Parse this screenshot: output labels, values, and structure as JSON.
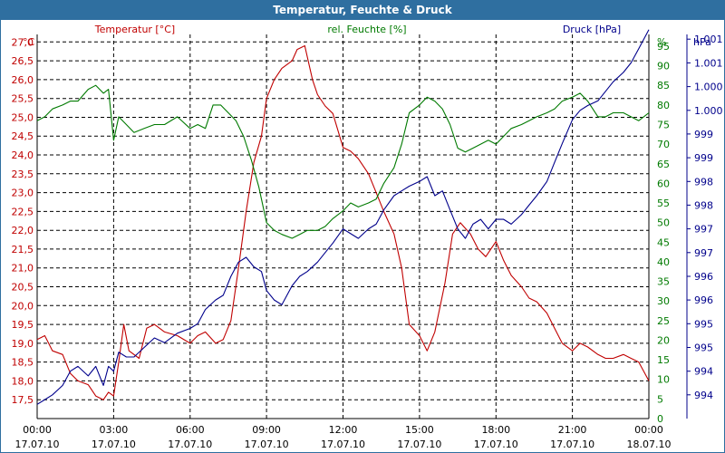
{
  "window": {
    "title": "Temperatur, Feuchte & Druck"
  },
  "colors": {
    "temperature": "#c00000",
    "humidity": "#007a00",
    "pressure": "#00008b",
    "grid": "#000000",
    "title_bar": "#2f6fa0"
  },
  "chart_data": {
    "type": "line",
    "title": "Temperatur, Feuchte & Druck",
    "legend_labels": {
      "temperature": "Temperatur [°C]",
      "humidity": "rel. Feuchte [%]",
      "pressure": "Druck [hPa]"
    },
    "axes": {
      "left": {
        "unit": "°C",
        "range": [
          17.0,
          27.2
        ],
        "ticks": [
          "17,5",
          "18,0",
          "18,5",
          "19,0",
          "19,5",
          "20,0",
          "20,5",
          "21,0",
          "21,5",
          "22,0",
          "22,5",
          "23,0",
          "23,5",
          "24,0",
          "24,5",
          "25,0",
          "25,5",
          "26,0",
          "26,5",
          "27,0"
        ],
        "tick_values": [
          17.5,
          18.0,
          18.5,
          19.0,
          19.5,
          20.0,
          20.5,
          21.0,
          21.5,
          22.0,
          22.5,
          23.0,
          23.5,
          24.0,
          24.5,
          25.0,
          25.5,
          26.0,
          26.5,
          27.0
        ]
      },
      "right1": {
        "unit": "%",
        "range": [
          0,
          98
        ],
        "ticks": [
          "0",
          "5",
          "10",
          "15",
          "20",
          "25",
          "30",
          "35",
          "40",
          "45",
          "50",
          "55",
          "60",
          "65",
          "70",
          "75",
          "80",
          "85",
          "90",
          "95"
        ],
        "tick_values": [
          0,
          5,
          10,
          15,
          20,
          25,
          30,
          35,
          40,
          45,
          50,
          55,
          60,
          65,
          70,
          75,
          80,
          85,
          90,
          95
        ]
      },
      "right2": {
        "unit": "hPa",
        "range": [
          993.5,
          1001.6
        ],
        "ticks": [
          "994",
          "994",
          "995",
          "995",
          "996",
          "996",
          "997",
          "997",
          "998",
          "998",
          "999",
          "999",
          "1.000",
          "1.000",
          "1.001",
          "1.001"
        ],
        "tick_values": [
          994.0,
          994.5,
          995.0,
          995.5,
          996.0,
          996.5,
          997.0,
          997.5,
          998.0,
          998.5,
          999.0,
          999.5,
          1000.0,
          1000.5,
          1001.0,
          1001.5
        ]
      },
      "x": {
        "range": [
          0,
          24
        ],
        "tick_values": [
          0,
          3,
          6,
          9,
          12,
          15,
          18,
          21,
          24
        ],
        "time_labels": [
          "00:00",
          "03:00",
          "06:00",
          "09:00",
          "12:00",
          "15:00",
          "18:00",
          "21:00",
          "00:00"
        ],
        "date_labels": [
          "17.07.10",
          "17.07.10",
          "17.07.10",
          "17.07.10",
          "17.07.10",
          "17.07.10",
          "17.07.10",
          "17.07.10",
          "18.07.10"
        ]
      }
    },
    "series": [
      {
        "name": "Temperatur",
        "axis": "left",
        "x": [
          0,
          0.3,
          0.6,
          1.0,
          1.3,
          1.6,
          2.0,
          2.3,
          2.6,
          2.8,
          3.0,
          3.2,
          3.4,
          3.6,
          4.0,
          4.3,
          4.6,
          5.0,
          5.5,
          6.0,
          6.3,
          6.6,
          7.0,
          7.3,
          7.6,
          7.9,
          8.2,
          8.5,
          8.8,
          9.0,
          9.3,
          9.6,
          10.0,
          10.2,
          10.5,
          10.8,
          11.0,
          11.3,
          11.6,
          12.0,
          12.3,
          12.6,
          13.0,
          13.3,
          13.6,
          14.0,
          14.3,
          14.6,
          15.0,
          15.3,
          15.6,
          16.0,
          16.3,
          16.6,
          17.0,
          17.3,
          17.6,
          18.0,
          18.3,
          18.6,
          19.0,
          19.3,
          19.6,
          20.0,
          20.3,
          20.6,
          21.0,
          21.3,
          21.6,
          22.0,
          22.3,
          22.6,
          23.0,
          23.3,
          23.6,
          24.0
        ],
        "y": [
          19.1,
          19.2,
          18.8,
          18.7,
          18.2,
          18.0,
          17.9,
          17.6,
          17.5,
          17.7,
          17.6,
          18.5,
          19.5,
          18.8,
          18.6,
          19.4,
          19.5,
          19.3,
          19.2,
          19.0,
          19.2,
          19.3,
          19.0,
          19.1,
          19.6,
          21.0,
          22.5,
          23.8,
          24.5,
          25.5,
          26.0,
          26.3,
          26.5,
          26.8,
          26.9,
          26.0,
          25.6,
          25.3,
          25.1,
          24.2,
          24.1,
          23.9,
          23.5,
          23.0,
          22.5,
          21.9,
          21.0,
          19.5,
          19.2,
          18.8,
          19.3,
          20.6,
          21.9,
          22.2,
          21.9,
          21.5,
          21.3,
          21.7,
          21.2,
          20.8,
          20.5,
          20.2,
          20.1,
          19.8,
          19.4,
          19.0,
          18.8,
          19.0,
          18.9,
          18.7,
          18.6,
          18.6,
          18.7,
          18.6,
          18.5,
          18.0
        ]
      },
      {
        "name": "rel. Feuchte",
        "axis": "right1",
        "x": [
          0,
          0.3,
          0.6,
          1.0,
          1.3,
          1.6,
          2.0,
          2.3,
          2.6,
          2.8,
          3.0,
          3.2,
          3.5,
          3.8,
          4.2,
          4.6,
          5.0,
          5.5,
          6.0,
          6.3,
          6.6,
          6.9,
          7.2,
          7.5,
          7.8,
          8.1,
          8.4,
          8.7,
          9.0,
          9.3,
          9.6,
          10.0,
          10.3,
          10.6,
          11.0,
          11.3,
          11.6,
          12.0,
          12.3,
          12.6,
          13.0,
          13.3,
          13.6,
          14.0,
          14.3,
          14.6,
          15.0,
          15.3,
          15.6,
          15.9,
          16.2,
          16.5,
          16.8,
          17.1,
          17.4,
          17.7,
          18.0,
          18.3,
          18.6,
          19.0,
          19.3,
          19.6,
          20.0,
          20.3,
          20.6,
          21.0,
          21.3,
          21.6,
          22.0,
          22.3,
          22.6,
          23.0,
          23.3,
          23.6,
          24.0
        ],
        "y": [
          76,
          77,
          79,
          80,
          81,
          81,
          84,
          85,
          83,
          84,
          71,
          77,
          75,
          73,
          74,
          75,
          75,
          77,
          74,
          75,
          74,
          80,
          80,
          78,
          76,
          72,
          66,
          59,
          50,
          48,
          47,
          46,
          47,
          48,
          48,
          49,
          51,
          53,
          55,
          54,
          55,
          56,
          60,
          64,
          70,
          78,
          80,
          82,
          81,
          79,
          75,
          69,
          68,
          69,
          70,
          71,
          70,
          72,
          74,
          75,
          76,
          77,
          78,
          79,
          81,
          82,
          83,
          81,
          77,
          77,
          78,
          78,
          77,
          76,
          78
        ]
      },
      {
        "name": "Druck",
        "axis": "right2",
        "x": [
          0,
          0.3,
          0.6,
          1.0,
          1.3,
          1.6,
          2.0,
          2.3,
          2.6,
          2.8,
          3.0,
          3.2,
          3.5,
          3.8,
          4.2,
          4.6,
          5.0,
          5.5,
          6.0,
          6.3,
          6.6,
          7.0,
          7.3,
          7.6,
          7.9,
          8.2,
          8.5,
          8.8,
          9.0,
          9.3,
          9.6,
          10.0,
          10.3,
          10.6,
          11.0,
          11.3,
          11.6,
          12.0,
          12.3,
          12.6,
          13.0,
          13.3,
          13.6,
          14.0,
          14.3,
          14.6,
          15.0,
          15.3,
          15.6,
          15.9,
          16.2,
          16.5,
          16.8,
          17.1,
          17.4,
          17.7,
          18.0,
          18.3,
          18.6,
          19.0,
          19.3,
          19.6,
          20.0,
          20.3,
          20.6,
          21.0,
          21.3,
          21.6,
          22.0,
          22.3,
          22.6,
          23.0,
          23.3,
          23.6,
          24.0
        ],
        "y": [
          993.8,
          993.9,
          994.0,
          994.2,
          994.5,
          994.6,
          994.4,
          994.6,
          994.2,
          994.6,
          994.5,
          994.9,
          994.8,
          994.8,
          995.0,
          995.2,
          995.1,
          995.3,
          995.4,
          995.5,
          995.8,
          996.0,
          996.1,
          996.5,
          996.8,
          996.9,
          996.7,
          996.6,
          996.2,
          996.0,
          995.9,
          996.3,
          996.5,
          996.6,
          996.8,
          997.0,
          997.2,
          997.5,
          997.4,
          997.3,
          997.5,
          997.6,
          997.9,
          998.2,
          998.3,
          998.4,
          998.5,
          998.6,
          998.2,
          998.3,
          997.9,
          997.5,
          997.3,
          997.6,
          997.7,
          997.5,
          997.7,
          997.7,
          997.6,
          997.8,
          998.0,
          998.2,
          998.5,
          998.9,
          999.3,
          999.8,
          1000.0,
          1000.1,
          1000.2,
          1000.4,
          1000.6,
          1000.8,
          1001.0,
          1001.3,
          1001.7
        ]
      }
    ]
  }
}
